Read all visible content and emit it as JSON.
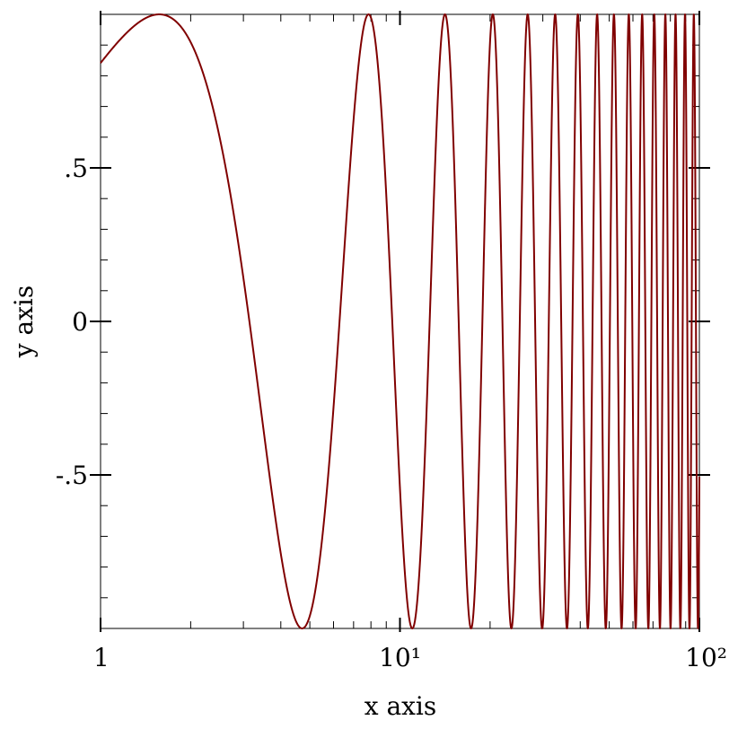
{
  "chart_data": {
    "type": "line",
    "title": "",
    "xlabel": "x axis",
    "ylabel": "y axis",
    "x_scale": "log",
    "xlim": [
      1,
      100
    ],
    "ylim": [
      -1,
      1
    ],
    "x_ticks": [
      {
        "value": 1,
        "label": "1"
      },
      {
        "value": 10,
        "label": "10¹"
      },
      {
        "value": 100,
        "label": "10²"
      }
    ],
    "y_ticks": [
      {
        "value": 0.5,
        "label": ".5"
      },
      {
        "value": 0,
        "label": "0"
      },
      {
        "value": -0.5,
        "label": "-.5"
      }
    ],
    "grid": false,
    "series": [
      {
        "function": "sin(x)",
        "color": "#800000",
        "x": [
          1,
          1.571,
          3.142,
          4.712,
          6.283,
          7.854,
          9.425,
          10.996,
          12.566,
          14.137,
          15.708,
          17.279,
          18.85,
          20.42,
          21.991,
          23.562,
          25.133,
          26.704,
          28.274,
          29.845,
          31.416,
          32.987,
          34.558,
          36.128,
          37.699,
          39.27,
          40.841,
          42.412,
          43.982,
          45.553,
          47.124,
          48.695,
          50.265,
          51.836,
          53.407,
          54.978,
          56.549,
          58.119,
          59.69,
          61.261,
          62.832,
          64.403,
          65.973,
          67.544,
          69.115,
          70.686,
          72.257,
          73.827,
          75.398,
          76.969,
          78.54,
          80.111,
          81.681,
          83.252,
          84.823,
          86.394,
          87.965,
          89.535,
          91.106,
          92.677,
          94.248,
          95.819,
          97.389,
          98.96,
          100
        ],
        "y": [
          0.841,
          1,
          0,
          -1,
          0,
          1,
          0,
          -1,
          0,
          1,
          0,
          -1,
          0,
          1,
          0,
          -1,
          0,
          1,
          0,
          -1,
          0,
          1,
          0,
          -1,
          0,
          1,
          0,
          -1,
          0,
          1,
          0,
          -1,
          0,
          1,
          0,
          -1,
          0,
          1,
          0,
          -1,
          0,
          1,
          0,
          -1,
          0,
          1,
          0,
          -1,
          0,
          1,
          0,
          -1,
          0,
          1,
          0,
          -1,
          0,
          1,
          0,
          -1,
          0,
          1,
          0,
          -1,
          -0.506
        ]
      }
    ]
  }
}
